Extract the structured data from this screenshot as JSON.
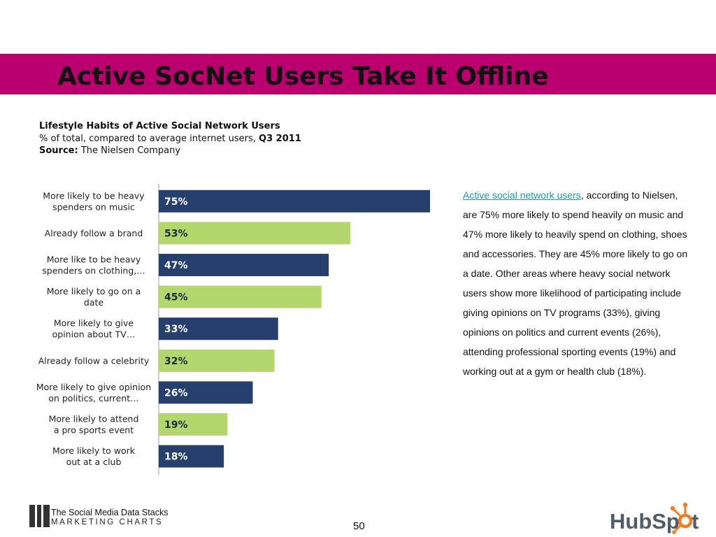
{
  "slide": {
    "title": "Active SocNet Users Take It Offline",
    "page_number": "50"
  },
  "colors": {
    "title_band": "#b9006e",
    "bar_dark": "#263f6c",
    "bar_light": "#b3d66d",
    "link": "#1a9bb0",
    "hubspot_orange": "#f47b20",
    "hubspot_gray": "#505b66"
  },
  "chart_heading": {
    "title": "Lifestyle Habits of Active Social Network Users",
    "subtitle_prefix": "% of total, compared to average internet users, ",
    "subtitle_period": "Q3 2011",
    "source_label": "Source:",
    "source_value": " The Nielsen Company"
  },
  "chart_data": {
    "type": "bar",
    "orientation": "horizontal",
    "categories": [
      [
        "More likely to be heavy",
        "spenders on music"
      ],
      [
        "Already follow a brand"
      ],
      [
        "More like to be heavy",
        "spenders on clothing,…"
      ],
      [
        "More likely to go on a",
        "date"
      ],
      [
        "More likely to give",
        "opinion about TV…"
      ],
      [
        "Already follow a celebrity"
      ],
      [
        "More likely to give opinion",
        "on politics, current…"
      ],
      [
        "More likely to attend",
        "a pro sports event"
      ],
      [
        "More likely to work",
        "out at a club"
      ]
    ],
    "values": [
      75,
      53,
      47,
      45,
      33,
      32,
      26,
      19,
      18
    ],
    "value_labels": [
      "75%",
      "53%",
      "47%",
      "45%",
      "33%",
      "32%",
      "26%",
      "19%",
      "18%"
    ],
    "bar_colors": [
      "dark",
      "light",
      "dark",
      "light",
      "dark",
      "light",
      "dark",
      "light",
      "dark"
    ],
    "xlim": [
      0,
      75
    ],
    "legend": "none",
    "grid": false
  },
  "side_text": {
    "link": "Active social network users",
    "body": ", according to Nielsen, are 75% more likely to spend heavily on music and 47% more likely to heavily spend on clothing, shoes and accessories. They are 45% more likely to go on a date. Other areas where heavy social network users show more likelihood of participating include giving opinions on TV programs (33%), giving opinions on politics and current events (26%), attending professional sporting events (19%) and working out at a gym or health club (18%)."
  },
  "footer": {
    "logo_line1": "The Social Media Data Stacks",
    "logo_line2": "MARKETING CHARTS",
    "hubspot_text": "HubSpot"
  }
}
